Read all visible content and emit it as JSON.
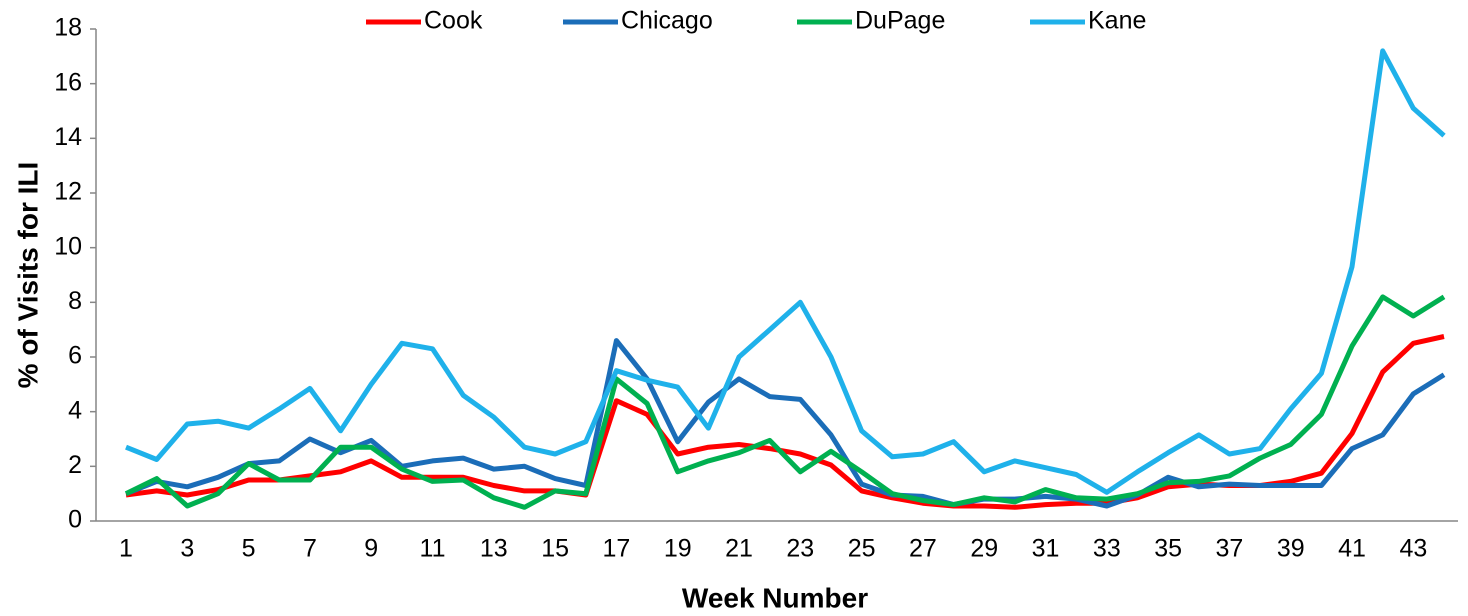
{
  "chart_data": {
    "type": "line",
    "x_label": "Week Number",
    "y_label": "% of Visits for ILI",
    "categories": [
      1,
      null,
      3,
      null,
      5,
      null,
      7,
      null,
      9,
      null,
      11,
      null,
      13,
      null,
      15,
      null,
      17,
      null,
      19,
      null,
      21,
      null,
      23,
      null,
      25,
      null,
      27,
      null,
      29,
      null,
      31,
      null,
      33,
      null,
      35,
      null,
      37,
      null,
      39,
      null,
      41,
      null,
      43,
      null
    ],
    "ylim": [
      0,
      18
    ],
    "yticks": [
      0,
      2,
      4,
      6,
      8,
      10,
      12,
      14,
      16,
      18
    ],
    "legend": "top",
    "series": [
      {
        "name": "Cook",
        "color": "#ff0000",
        "values": [
          0.95,
          1.1,
          0.95,
          1.15,
          1.5,
          1.5,
          1.65,
          1.8,
          2.2,
          1.6,
          1.6,
          1.6,
          1.3,
          1.1,
          1.1,
          0.95,
          4.4,
          3.9,
          2.45,
          2.7,
          2.8,
          2.65,
          2.45,
          2.05,
          1.1,
          0.85,
          0.65,
          0.55,
          0.55,
          0.5,
          0.6,
          0.65,
          0.65,
          0.85,
          1.25,
          1.35,
          1.3,
          1.3,
          1.45,
          1.75,
          3.2,
          5.45,
          6.5,
          6.75
        ]
      },
      {
        "name": "Chicago",
        "color": "#1b6db8",
        "values": [
          1.0,
          1.45,
          1.25,
          1.6,
          2.1,
          2.2,
          3.0,
          2.5,
          2.95,
          2.0,
          2.2,
          2.3,
          1.9,
          2.0,
          1.55,
          1.3,
          6.6,
          5.2,
          2.9,
          4.35,
          5.2,
          4.55,
          4.45,
          3.15,
          1.35,
          0.95,
          0.9,
          0.6,
          0.8,
          0.8,
          0.9,
          0.8,
          0.55,
          0.95,
          1.6,
          1.25,
          1.35,
          1.3,
          1.3,
          1.3,
          2.65,
          3.15,
          4.65,
          5.35
        ]
      },
      {
        "name": "DuPage",
        "color": "#00b050",
        "values": [
          1.0,
          1.55,
          0.55,
          1.0,
          2.1,
          1.5,
          1.5,
          2.7,
          2.7,
          1.9,
          1.45,
          1.5,
          0.85,
          0.5,
          1.1,
          1.0,
          5.2,
          4.3,
          1.8,
          2.2,
          2.5,
          2.95,
          1.8,
          2.55,
          1.8,
          1.0,
          0.75,
          0.6,
          0.85,
          0.7,
          1.15,
          0.85,
          0.8,
          1.0,
          1.4,
          1.45,
          1.65,
          2.3,
          2.8,
          3.9,
          6.4,
          8.2,
          7.5,
          8.2
        ]
      },
      {
        "name": "Kane",
        "color": "#1fb1ea",
        "values": [
          2.7,
          2.25,
          3.55,
          3.65,
          3.4,
          4.1,
          4.85,
          3.3,
          5.0,
          6.5,
          6.3,
          4.6,
          3.8,
          2.7,
          2.45,
          2.9,
          5.5,
          5.15,
          4.9,
          3.4,
          6.0,
          7.0,
          8.0,
          6.0,
          3.3,
          2.35,
          2.45,
          2.9,
          1.8,
          2.2,
          1.95,
          1.7,
          1.05,
          1.8,
          2.5,
          3.15,
          2.45,
          2.65,
          4.1,
          5.4,
          9.3,
          17.2,
          15.1,
          14.1
        ]
      }
    ]
  }
}
